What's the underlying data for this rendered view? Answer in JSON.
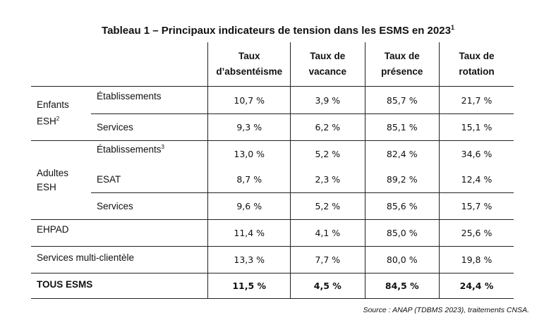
{
  "title": "Tableau 1 – Principaux indicateurs de tension dans les ESMS en 2023",
  "title_note": "1",
  "headers": {
    "col1_line1": "Taux",
    "col1_line2": "d’absentéisme",
    "col2_line1": "Taux de",
    "col2_line2": "vacance",
    "col3_line1": "Taux de",
    "col3_line2": "présence",
    "col4_line1": "Taux de",
    "col4_line2": "rotation"
  },
  "groups": {
    "enfants_line1": "Enfants",
    "enfants_line2": "ESH",
    "enfants_note": "2",
    "adultes_line1": "Adultes",
    "adultes_line2": "ESH"
  },
  "rows": [
    {
      "label": "Établissements",
      "note": "",
      "values": [
        "10,7 %",
        "3,9 %",
        "85,7 %",
        "21,7 %"
      ]
    },
    {
      "label": "Services",
      "note": "",
      "values": [
        "9,3 %",
        "6,2 %",
        "85,1 %",
        "15,1 %"
      ]
    },
    {
      "label": "Établissements",
      "note": "3",
      "values": [
        "13,0 %",
        "5,2 %",
        "82,4 %",
        "34,6 %"
      ]
    },
    {
      "label": "ESAT",
      "note": "",
      "values": [
        "8,7 %",
        "2,3 %",
        "89,2 %",
        "12,4 %"
      ]
    },
    {
      "label": "Services",
      "note": "",
      "values": [
        "9,6 %",
        "5,2 %",
        "85,6 %",
        "15,7 %"
      ]
    },
    {
      "label": "EHPAD",
      "note": "",
      "values": [
        "11,4 %",
        "4,1 %",
        "85,0 %",
        "25,6 %"
      ]
    },
    {
      "label": "Services multi-clientèle",
      "note": "",
      "values": [
        "13,3 %",
        "7,7 %",
        "80,0 %",
        "19,8 %"
      ]
    },
    {
      "label": "TOUS ESMS",
      "note": "",
      "values": [
        "11,5 %",
        "4,5 %",
        "84,5 %",
        "24,4 %"
      ]
    }
  ],
  "source": "Source : ANAP (TDBMS 2023), traitements CNSA."
}
